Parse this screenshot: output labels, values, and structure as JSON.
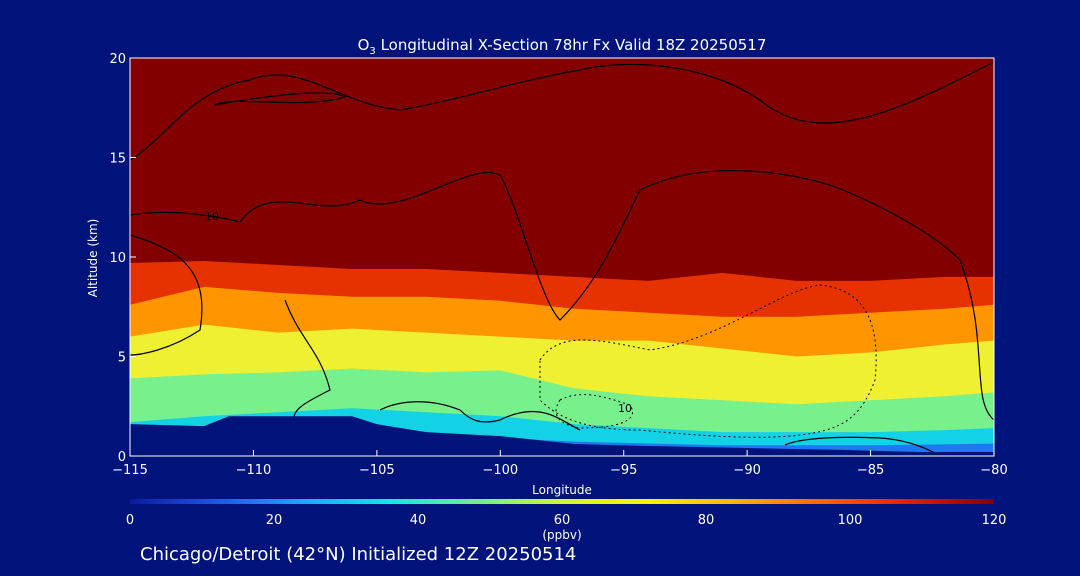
{
  "chart_data": {
    "type": "heatmap",
    "title_main": "O",
    "title_sub": "3",
    "title_rest": " Longitudinal X-Section 78hr  Fx Valid 18Z 20250517",
    "xlabel": "Longitude",
    "ylabel": "Altitude (km)",
    "xlim": [
      -115,
      -80
    ],
    "ylim": [
      0,
      20
    ],
    "x_ticks": [
      -115,
      -110,
      -105,
      -100,
      -95,
      -90,
      -85,
      -80
    ],
    "x_tick_labels": [
      "−115",
      "−110",
      "−105",
      "−100",
      "−95",
      "−90",
      "−85",
      "−80"
    ],
    "y_ticks": [
      0,
      5,
      10,
      15,
      20
    ],
    "y_tick_labels": [
      "0",
      "5",
      "10",
      "15",
      "20"
    ],
    "colorbar": {
      "min": 0,
      "max": 120,
      "ticks": [
        0,
        20,
        40,
        60,
        80,
        100,
        120
      ],
      "tick_labels": [
        "0",
        "20",
        "40",
        "60",
        "80",
        "100",
        "120"
      ],
      "unit": "(ppbv)",
      "colors": [
        "#0a1aa0",
        "#1e56e6",
        "#1ea6ff",
        "#14e6e6",
        "#6ef08c",
        "#d2f53c",
        "#fff000",
        "#ffb400",
        "#ff6400",
        "#e61e00",
        "#820000"
      ]
    },
    "profile_points": [
      {
        "lon": -115,
        "z10": 9.7,
        "z8": 7.6,
        "z6": 6.0,
        "z4": 3.9,
        "z2": 1.7
      },
      {
        "lon": -112,
        "z10": 9.8,
        "z8": 8.5,
        "z6": 6.6,
        "z4": 4.1,
        "z2": 2.0
      },
      {
        "lon": -109,
        "z10": 9.6,
        "z8": 8.2,
        "z6": 6.2,
        "z4": 4.2,
        "z2": 2.2
      },
      {
        "lon": -106,
        "z10": 9.4,
        "z8": 8.0,
        "z6": 6.4,
        "z4": 4.4,
        "z2": 2.4
      },
      {
        "lon": -103,
        "z10": 9.4,
        "z8": 8.0,
        "z6": 6.2,
        "z4": 4.2,
        "z2": 2.2
      },
      {
        "lon": -100,
        "z10": 9.2,
        "z8": 7.8,
        "z6": 6.0,
        "z4": 4.3,
        "z2": 2.0
      },
      {
        "lon": -97,
        "z10": 9.0,
        "z8": 7.4,
        "z6": 5.8,
        "z4": 3.4,
        "z2": 1.6
      },
      {
        "lon": -94,
        "z10": 8.8,
        "z8": 7.2,
        "z6": 5.8,
        "z4": 3.0,
        "z2": 1.4
      },
      {
        "lon": -91,
        "z10": 9.2,
        "z8": 7.0,
        "z6": 5.4,
        "z4": 2.8,
        "z2": 1.2
      },
      {
        "lon": -88,
        "z10": 8.8,
        "z8": 7.0,
        "z6": 5.0,
        "z4": 2.6,
        "z2": 1.2
      },
      {
        "lon": -85,
        "z10": 8.8,
        "z8": 7.2,
        "z6": 5.2,
        "z4": 2.8,
        "z2": 1.2
      },
      {
        "lon": -82,
        "z10": 9.0,
        "z8": 7.4,
        "z6": 5.6,
        "z4": 3.0,
        "z2": 1.3
      },
      {
        "lon": -80,
        "z10": 9.0,
        "z8": 7.6,
        "z6": 5.8,
        "z4": 3.2,
        "z2": 1.4
      }
    ],
    "terrain": [
      [
        -115,
        1.6
      ],
      [
        -112,
        1.5
      ],
      [
        -111,
        2.0
      ],
      [
        -108,
        2.0
      ],
      [
        -106,
        2.0
      ],
      [
        -105,
        1.6
      ],
      [
        -103,
        1.2
      ],
      [
        -100,
        1.0
      ],
      [
        -97,
        0.6
      ],
      [
        -94,
        0.5
      ],
      [
        -90,
        0.4
      ],
      [
        -86,
        0.3
      ],
      [
        -83,
        0.2
      ],
      [
        -80,
        0.2
      ]
    ],
    "contour_label": "10",
    "footer": "Chicago/Detroit (42°N) Initialized 12Z 20250514"
  }
}
